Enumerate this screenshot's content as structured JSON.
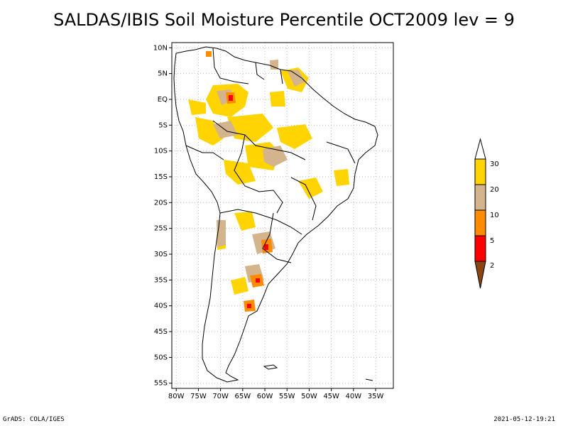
{
  "title": "SALDAS/IBIS Soil Moisture Percentile OCT2009 lev = 9",
  "footer": {
    "left": "GrADS: COLA/IGES",
    "right": "2021-05-12-19:21"
  },
  "map": {
    "lon_range": [
      -81,
      -31
    ],
    "lat_range": [
      -56,
      11
    ],
    "x_tick_labels": [
      "80W",
      "75W",
      "70W",
      "65W",
      "60W",
      "55W",
      "50W",
      "45W",
      "40W",
      "35W"
    ],
    "y_tick_labels": [
      "10N",
      "5N",
      "EQ",
      "5S",
      "10S",
      "15S",
      "20S",
      "25S",
      "30S",
      "35S",
      "40S",
      "45S",
      "50S",
      "55S"
    ]
  },
  "colorbar": {
    "labels": [
      "30",
      "20",
      "10",
      "5",
      "2"
    ],
    "colors": {
      "above_30": "#ffffff",
      "20_30": "#ffd400",
      "10_20": "#d4b48c",
      "5_10": "#ff8c00",
      "2_5": "#ff0000",
      "below_2": "#8b4513"
    }
  }
}
